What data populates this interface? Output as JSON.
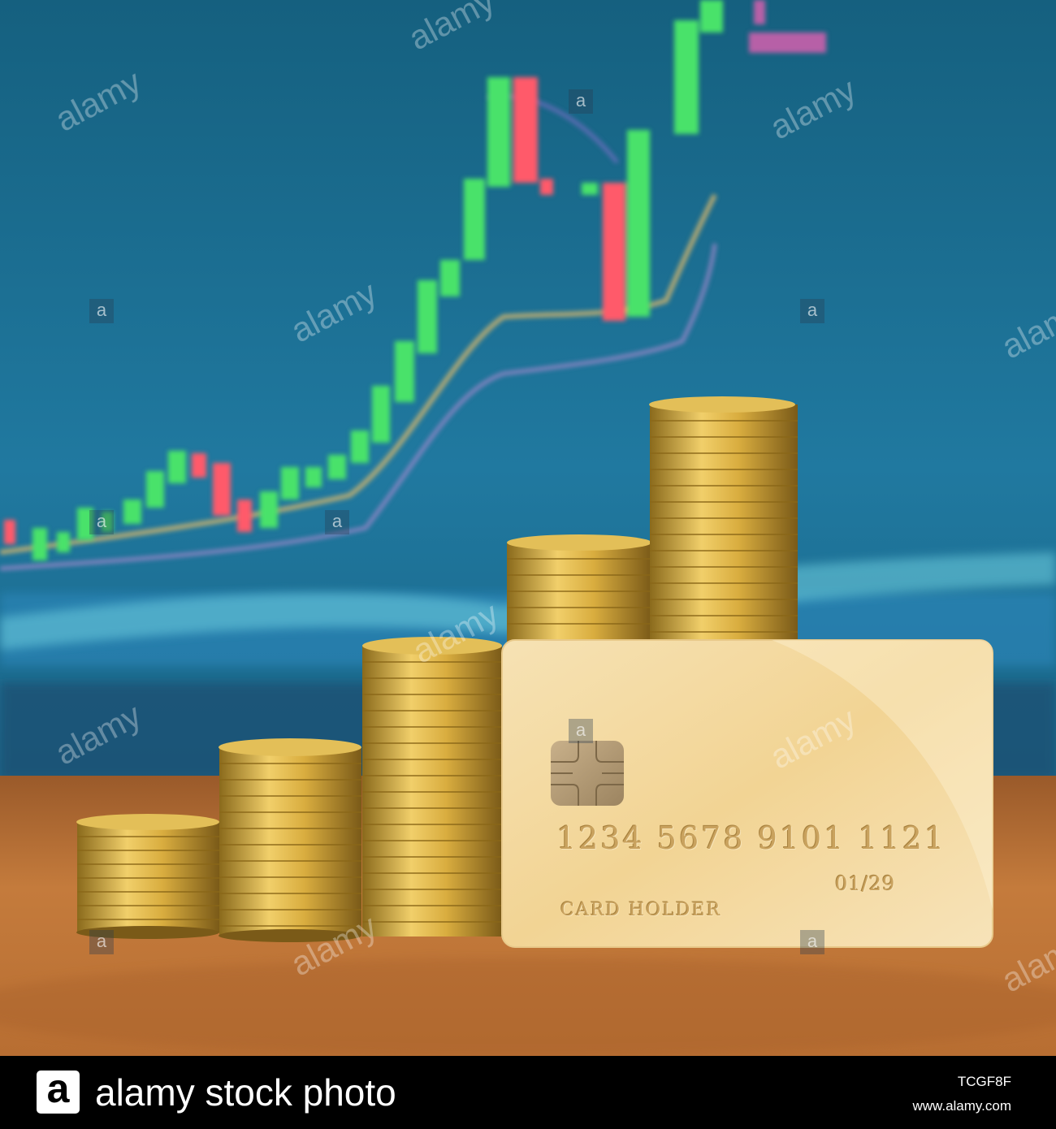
{
  "card": {
    "number": "1234 5678 9101 1121",
    "expiry": "01/29",
    "holder": "CARD HOLDER"
  },
  "watermark": {
    "text": "alamy",
    "letter": "a"
  },
  "footer": {
    "logo_letter": "a",
    "brand": "alamy stock photo",
    "image_id": "TCGF8F",
    "url": "www.alamy.com"
  },
  "colors": {
    "screen_blue": "#1b6f92",
    "table_wood": "#c0773a",
    "coin_gold": "#d4a93c",
    "card_gold": "#f2d9a0",
    "candle_green": "#49e26a",
    "candle_red": "#ff5a6a"
  }
}
